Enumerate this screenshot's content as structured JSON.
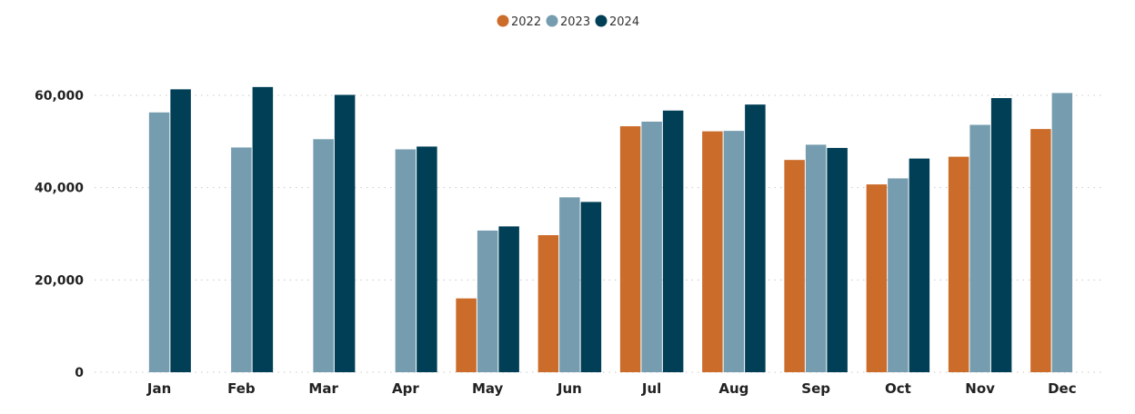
{
  "chart_data": {
    "type": "bar",
    "categories": [
      "Jan",
      "Feb",
      "Mar",
      "Apr",
      "May",
      "Jun",
      "Jul",
      "Aug",
      "Sep",
      "Oct",
      "Nov",
      "Dec"
    ],
    "series": [
      {
        "name": "2022",
        "color": "#CB6C2B",
        "values": [
          null,
          null,
          null,
          null,
          16000,
          29700,
          53300,
          52200,
          46000,
          40700,
          46700,
          52700
        ]
      },
      {
        "name": "2023",
        "color": "#769DAF",
        "values": [
          56300,
          48700,
          50500,
          48300,
          30700,
          37900,
          54300,
          52300,
          49300,
          42000,
          53600,
          60500
        ]
      },
      {
        "name": "2024",
        "color": "#003F56",
        "values": [
          61300,
          61800,
          60100,
          48900,
          31600,
          36900,
          56700,
          58000,
          48600,
          46300,
          59400,
          null
        ]
      }
    ],
    "y_ticks": [
      "0",
      "20,000",
      "40,000",
      "60,000"
    ],
    "y_tick_values": [
      0,
      20000,
      40000,
      60000
    ],
    "ylim": [
      0,
      60000
    ],
    "grid": true,
    "legend_position": "top-center"
  }
}
